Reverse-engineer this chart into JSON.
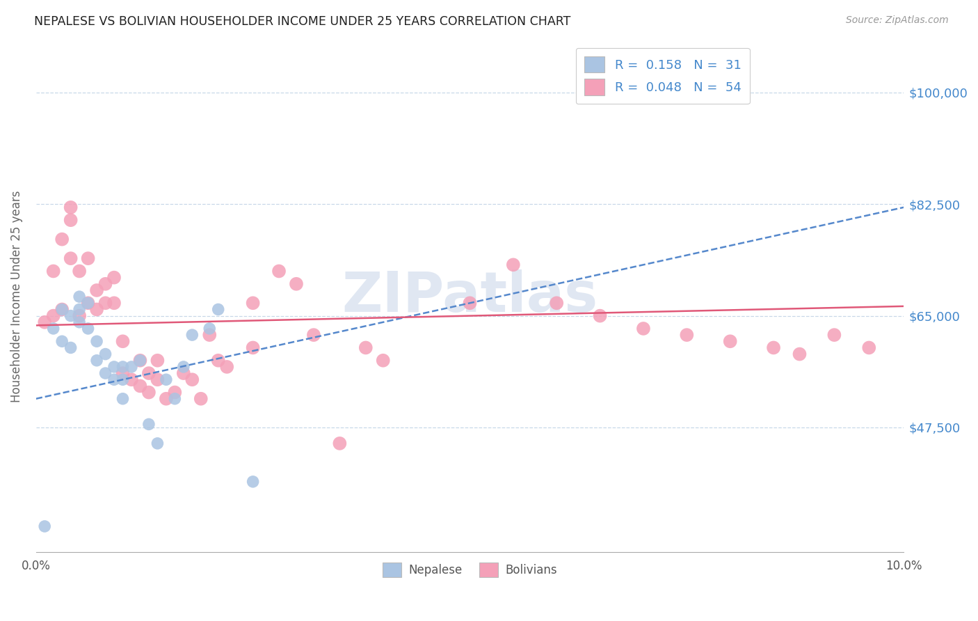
{
  "title": "NEPALESE VS BOLIVIAN HOUSEHOLDER INCOME UNDER 25 YEARS CORRELATION CHART",
  "source": "Source: ZipAtlas.com",
  "ylabel": "Householder Income Under 25 years",
  "watermark": "ZIPatlas",
  "r_nepalese": 0.158,
  "n_nepalese": 31,
  "r_bolivian": 0.048,
  "n_bolivian": 54,
  "xlim": [
    0.0,
    0.1
  ],
  "ylim": [
    28000,
    108000
  ],
  "ytick_positions": [
    47500,
    65000,
    82500,
    100000
  ],
  "ytick_labels": [
    "$47,500",
    "$65,000",
    "$82,500",
    "$100,000"
  ],
  "xtick_positions": [
    0.0,
    0.02,
    0.04,
    0.06,
    0.08,
    0.1
  ],
  "xtick_labels": [
    "0.0%",
    "",
    "",
    "",
    "",
    "10.0%"
  ],
  "color_nepalese": "#aac4e2",
  "color_bolivian": "#f4a0b8",
  "color_nepalese_line": "#5588cc",
  "color_bolivian_line": "#e05878",
  "color_axis_labels": "#4488cc",
  "color_watermark": "#ccd8ea",
  "nepalese_x": [
    0.001,
    0.002,
    0.003,
    0.003,
    0.004,
    0.004,
    0.005,
    0.005,
    0.005,
    0.006,
    0.006,
    0.007,
    0.007,
    0.008,
    0.008,
    0.009,
    0.009,
    0.01,
    0.01,
    0.01,
    0.011,
    0.012,
    0.013,
    0.014,
    0.015,
    0.016,
    0.017,
    0.018,
    0.02,
    0.021,
    0.025
  ],
  "nepalese_y": [
    32000,
    63000,
    61000,
    66000,
    60000,
    65000,
    64000,
    66000,
    68000,
    63000,
    67000,
    58000,
    61000,
    56000,
    59000,
    55000,
    57000,
    52000,
    55000,
    57000,
    57000,
    58000,
    48000,
    45000,
    55000,
    52000,
    57000,
    62000,
    63000,
    66000,
    39000
  ],
  "bolivian_x": [
    0.001,
    0.002,
    0.002,
    0.003,
    0.003,
    0.004,
    0.004,
    0.004,
    0.005,
    0.005,
    0.006,
    0.006,
    0.007,
    0.007,
    0.008,
    0.008,
    0.009,
    0.009,
    0.01,
    0.01,
    0.011,
    0.012,
    0.012,
    0.013,
    0.013,
    0.014,
    0.014,
    0.015,
    0.016,
    0.017,
    0.018,
    0.019,
    0.02,
    0.021,
    0.022,
    0.025,
    0.025,
    0.028,
    0.03,
    0.032,
    0.035,
    0.038,
    0.04,
    0.05,
    0.055,
    0.06,
    0.065,
    0.07,
    0.075,
    0.08,
    0.085,
    0.088,
    0.092,
    0.096
  ],
  "bolivian_y": [
    64000,
    65000,
    72000,
    66000,
    77000,
    74000,
    80000,
    82000,
    65000,
    72000,
    67000,
    74000,
    66000,
    69000,
    67000,
    70000,
    67000,
    71000,
    56000,
    61000,
    55000,
    58000,
    54000,
    53000,
    56000,
    55000,
    58000,
    52000,
    53000,
    56000,
    55000,
    52000,
    62000,
    58000,
    57000,
    60000,
    67000,
    72000,
    70000,
    62000,
    45000,
    60000,
    58000,
    67000,
    73000,
    67000,
    65000,
    63000,
    62000,
    61000,
    60000,
    59000,
    62000,
    60000
  ],
  "nep_trend_x": [
    0.0,
    0.1
  ],
  "nep_trend_y": [
    52000,
    82000
  ],
  "bol_trend_x": [
    0.0,
    0.1
  ],
  "bol_trend_y": [
    63500,
    66500
  ]
}
